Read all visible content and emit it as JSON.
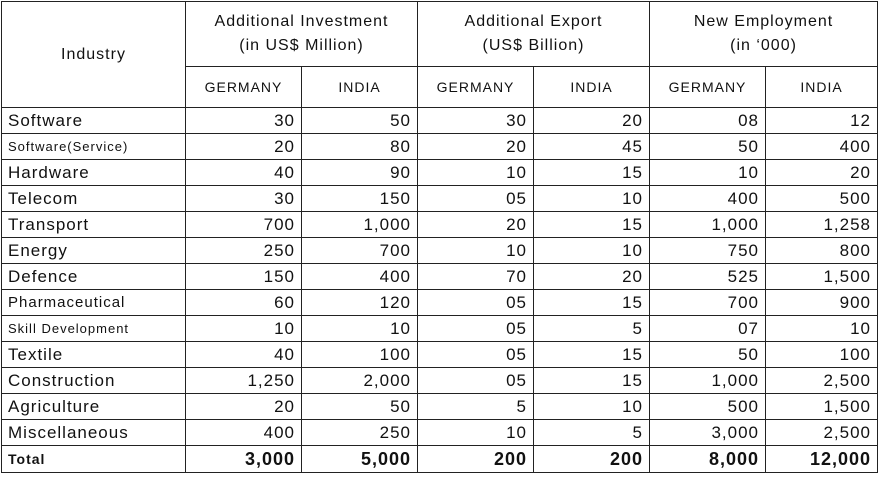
{
  "table": {
    "header": {
      "industry": "Industry",
      "groups": [
        {
          "title": "Additional Investment",
          "unit": "(in US$ Million)"
        },
        {
          "title": "Additional Export",
          "unit": "(US$ Billion)"
        },
        {
          "title": "New Employment",
          "unit": "(in ‘000)"
        }
      ],
      "countries": [
        "GERMANY",
        "INDIA",
        "GERMANY",
        "INDIA",
        "GERMANY",
        "INDIA"
      ]
    },
    "rows": [
      [
        "Software",
        "30",
        "50",
        "30",
        "20",
        "08",
        "12"
      ],
      [
        "Software(Service)",
        "20",
        "80",
        "20",
        "45",
        "50",
        "400"
      ],
      [
        "Hardware",
        "40",
        "90",
        "10",
        "15",
        "10",
        "20"
      ],
      [
        "Telecom",
        "30",
        "150",
        "05",
        "10",
        "400",
        "500"
      ],
      [
        "Transport",
        "700",
        "1,000",
        "20",
        "15",
        "1,000",
        "1,258"
      ],
      [
        "Energy",
        "250",
        "700",
        "10",
        "10",
        "750",
        "800"
      ],
      [
        "Defence",
        "150",
        "400",
        "70",
        "20",
        "525",
        "1,500"
      ],
      [
        "Pharmaceutical",
        "60",
        "120",
        "05",
        "15",
        "700",
        "900"
      ],
      [
        "Skill Development",
        "10",
        "10",
        "05",
        "5",
        "07",
        "10"
      ],
      [
        "Textile",
        "40",
        "100",
        "05",
        "15",
        "50",
        "100"
      ],
      [
        "Construction",
        "1,250",
        "2,000",
        "05",
        "15",
        "1,000",
        "2,500"
      ],
      [
        "Agriculture",
        "20",
        "50",
        "5",
        "10",
        "500",
        "1,500"
      ],
      [
        "Miscellaneous",
        "400",
        "250",
        "10",
        "5",
        "3,000",
        "2,500"
      ]
    ],
    "total": [
      "Total",
      "3,000",
      "5,000",
      "200",
      "200",
      "8,000",
      "12,000"
    ]
  }
}
